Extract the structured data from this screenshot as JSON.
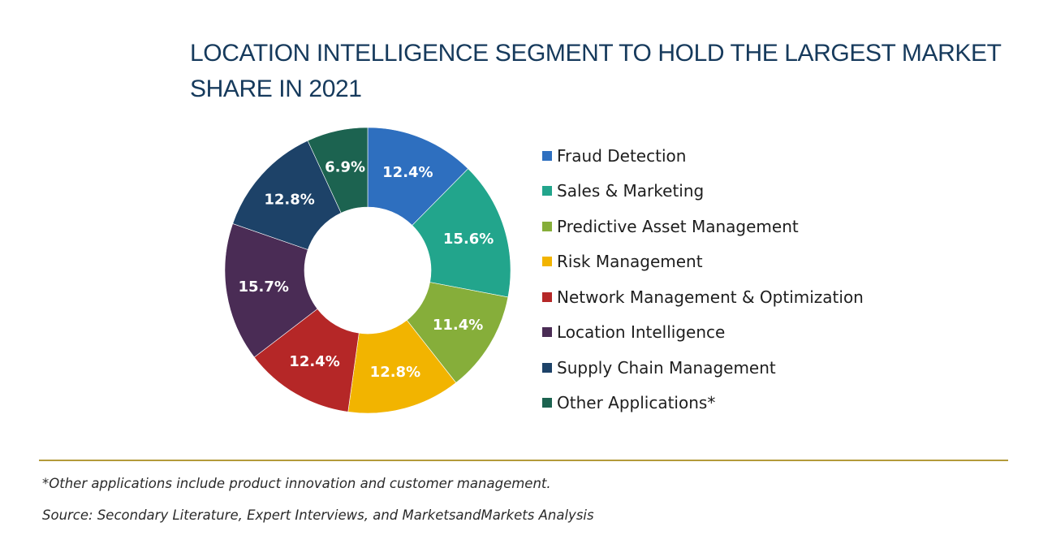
{
  "chart_data": {
    "type": "pie",
    "title": "LOCATION INTELLIGENCE SEGMENT TO HOLD THE LARGEST MARKET SHARE IN 2021",
    "unit": "%",
    "categories": [
      "Fraud Detection",
      "Sales & Marketing",
      "Predictive Asset Management",
      "Risk Management",
      "Network Management & Optimization",
      "Location Intelligence",
      "Supply Chain Management",
      "Other Applications*"
    ],
    "values": [
      12.4,
      15.6,
      11.4,
      12.8,
      12.4,
      15.7,
      12.8,
      6.9
    ],
    "labels": [
      "12.4%",
      "15.6%",
      "11.4%",
      "12.8%",
      "12.4%",
      "15.7%",
      "12.8%",
      "6.9%"
    ],
    "colors": [
      "#2e6fbf",
      "#22a58c",
      "#86ae3a",
      "#f2b400",
      "#b52727",
      "#4a2c55",
      "#1d4268",
      "#1c6350"
    ],
    "style": "donut",
    "start_angle_deg": 0,
    "direction": "clockwise",
    "legend_position": "right"
  },
  "footnotes": {
    "note": "*Other applications include product innovation and customer management.",
    "source": "Source: Secondary Literature, Expert Interviews, and MarketsandMarkets Analysis"
  }
}
